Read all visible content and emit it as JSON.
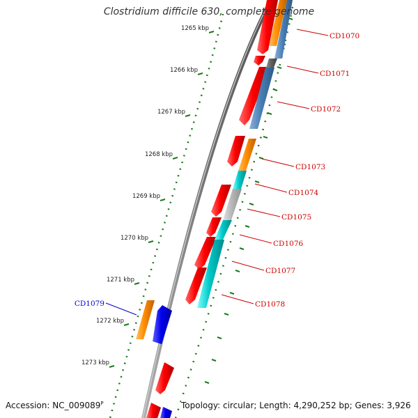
{
  "title": "Clostridium difficile 630, complete genome",
  "accession_label": "Accession: NC_009089",
  "accession_suffix": "P",
  "topology_label": "Topology: circular; Length: 4,290,252 bp; Genes: 3,926",
  "scale_ticks": [
    {
      "label": "1265 kbp",
      "kbp": 1265
    },
    {
      "label": "1266 kbp",
      "kbp": 1266
    },
    {
      "label": "1267 kbp",
      "kbp": 1267
    },
    {
      "label": "1268 kbp",
      "kbp": 1268
    },
    {
      "label": "1269 kbp",
      "kbp": 1269
    },
    {
      "label": "1270 kbp",
      "kbp": 1270
    },
    {
      "label": "1271 kbp",
      "kbp": 1271
    },
    {
      "label": "1272 kbp",
      "kbp": 1272
    },
    {
      "label": "1273 kbp",
      "kbp": 1273
    }
  ],
  "gene_labels": [
    {
      "label": "CD1070",
      "color": "#cc0000"
    },
    {
      "label": "CD1071",
      "color": "#cc0000"
    },
    {
      "label": "CD1072",
      "color": "#cc0000"
    },
    {
      "label": "CD1073",
      "color": "#cc0000"
    },
    {
      "label": "CD1074",
      "color": "#cc0000"
    },
    {
      "label": "CD1075",
      "color": "#cc0000"
    },
    {
      "label": "CD1076",
      "color": "#cc0000"
    },
    {
      "label": "CD1077",
      "color": "#cc0000"
    },
    {
      "label": "CD1078",
      "color": "#cc0000"
    },
    {
      "label": "CD1079",
      "color": "#0000cc"
    }
  ],
  "colors": {
    "backbone": "#808080",
    "cds": "#ff0000",
    "orange": "#ff8c00",
    "steelblue": "#4a7fb5",
    "darkgray": "#606060",
    "cyan": "#00c8c8",
    "lightgray": "#b8b8b8",
    "blue": "#0000ee",
    "tick_green": "#1a7a1a"
  }
}
